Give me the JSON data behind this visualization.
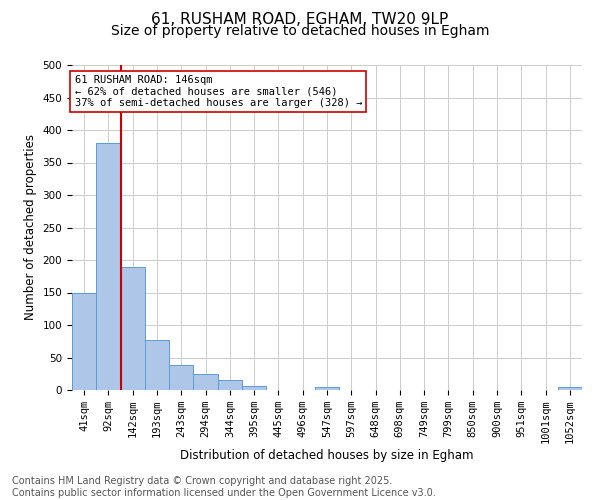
{
  "title1": "61, RUSHAM ROAD, EGHAM, TW20 9LP",
  "title2": "Size of property relative to detached houses in Egham",
  "xlabel": "Distribution of detached houses by size in Egham",
  "ylabel": "Number of detached properties",
  "bar_labels": [
    "41sqm",
    "92sqm",
    "142sqm",
    "193sqm",
    "243sqm",
    "294sqm",
    "344sqm",
    "395sqm",
    "445sqm",
    "496sqm",
    "547sqm",
    "597sqm",
    "648sqm",
    "698sqm",
    "749sqm",
    "799sqm",
    "850sqm",
    "900sqm",
    "951sqm",
    "1001sqm",
    "1052sqm"
  ],
  "bar_values": [
    150,
    380,
    190,
    77,
    38,
    25,
    16,
    6,
    0,
    0,
    5,
    0,
    0,
    0,
    0,
    0,
    0,
    0,
    0,
    0,
    5
  ],
  "bar_color": "#aec6e8",
  "bar_edge_color": "#5b9bd5",
  "vline_index": 2,
  "vline_color": "#cc0000",
  "annotation_text": "61 RUSHAM ROAD: 146sqm\n← 62% of detached houses are smaller (546)\n37% of semi-detached houses are larger (328) →",
  "annotation_box_color": "#ffffff",
  "annotation_border_color": "#cc0000",
  "ylim": [
    0,
    500
  ],
  "yticks": [
    0,
    50,
    100,
    150,
    200,
    250,
    300,
    350,
    400,
    450,
    500
  ],
  "grid_color": "#cccccc",
  "bg_color": "#ffffff",
  "footer_line1": "Contains HM Land Registry data © Crown copyright and database right 2025.",
  "footer_line2": "Contains public sector information licensed under the Open Government Licence v3.0.",
  "title_fontsize": 11,
  "subtitle_fontsize": 10,
  "label_fontsize": 8.5,
  "tick_fontsize": 7.5,
  "footer_fontsize": 7
}
